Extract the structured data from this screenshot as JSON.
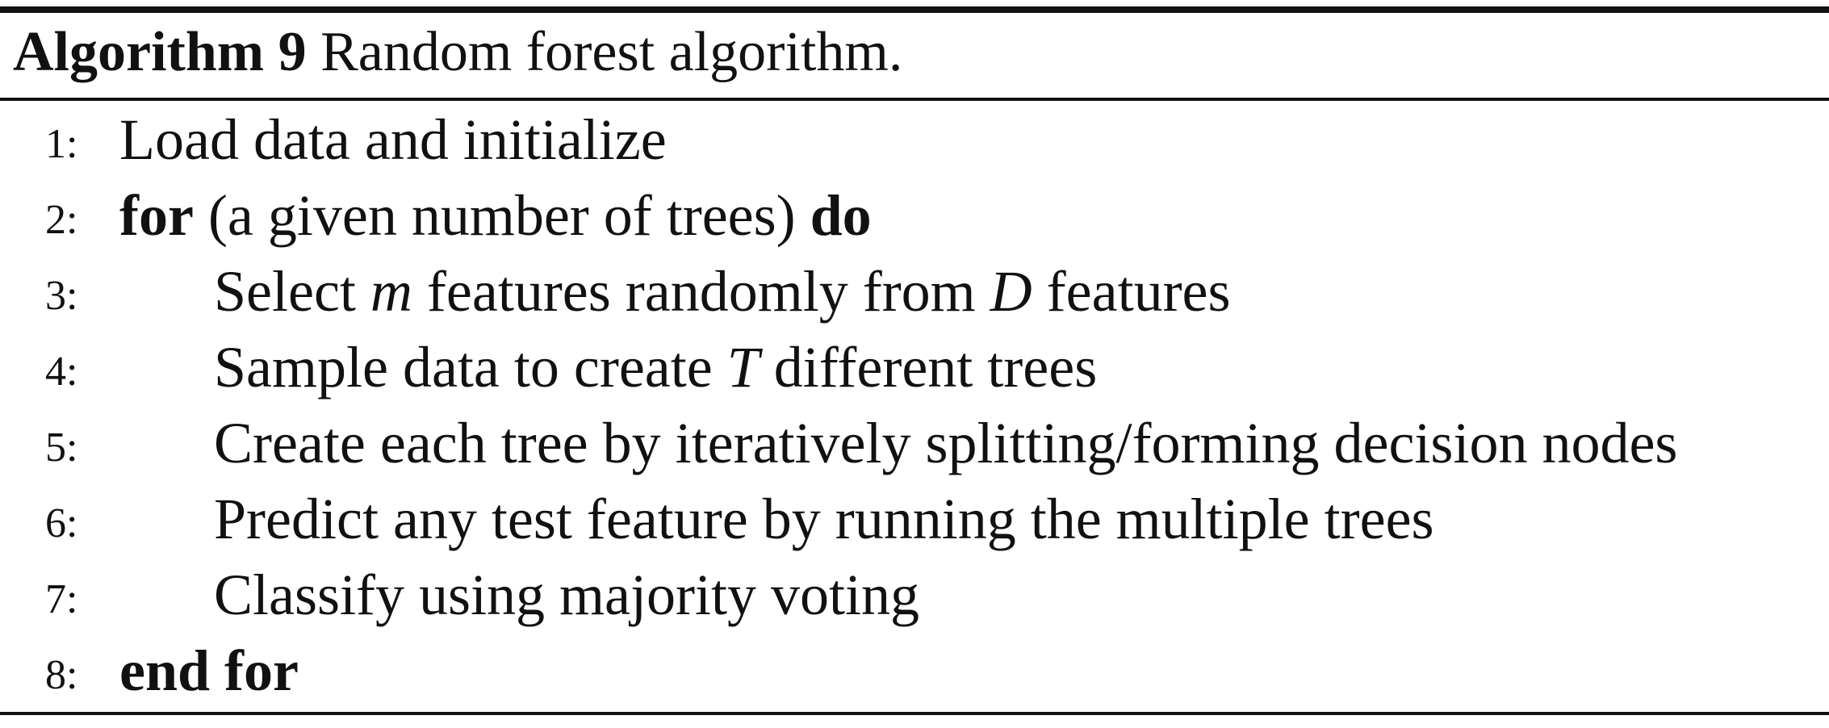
{
  "algorithm": {
    "label": "Algorithm 9",
    "title": " Random forest algorithm.",
    "lines": [
      {
        "number": "1:",
        "text": "Load data and initialize"
      },
      {
        "number": "2:",
        "keyword_start": "for",
        "text": " (a given number of trees) ",
        "keyword_end": "do"
      },
      {
        "number": "3:",
        "prefix": "Select ",
        "var1": "m",
        "middle": " features randomly from ",
        "var2": "D",
        "suffix": " features"
      },
      {
        "number": "4:",
        "prefix": "Sample data to create ",
        "var": "T",
        "suffix": " different trees"
      },
      {
        "number": "5:",
        "text": "Create each tree by iteratively splitting/forming decision nodes"
      },
      {
        "number": "6:",
        "text": "Predict any test feature by running the multiple trees"
      },
      {
        "number": "7:",
        "text": "Classify using majority voting"
      },
      {
        "number": "8:",
        "keyword": "end for"
      }
    ]
  }
}
